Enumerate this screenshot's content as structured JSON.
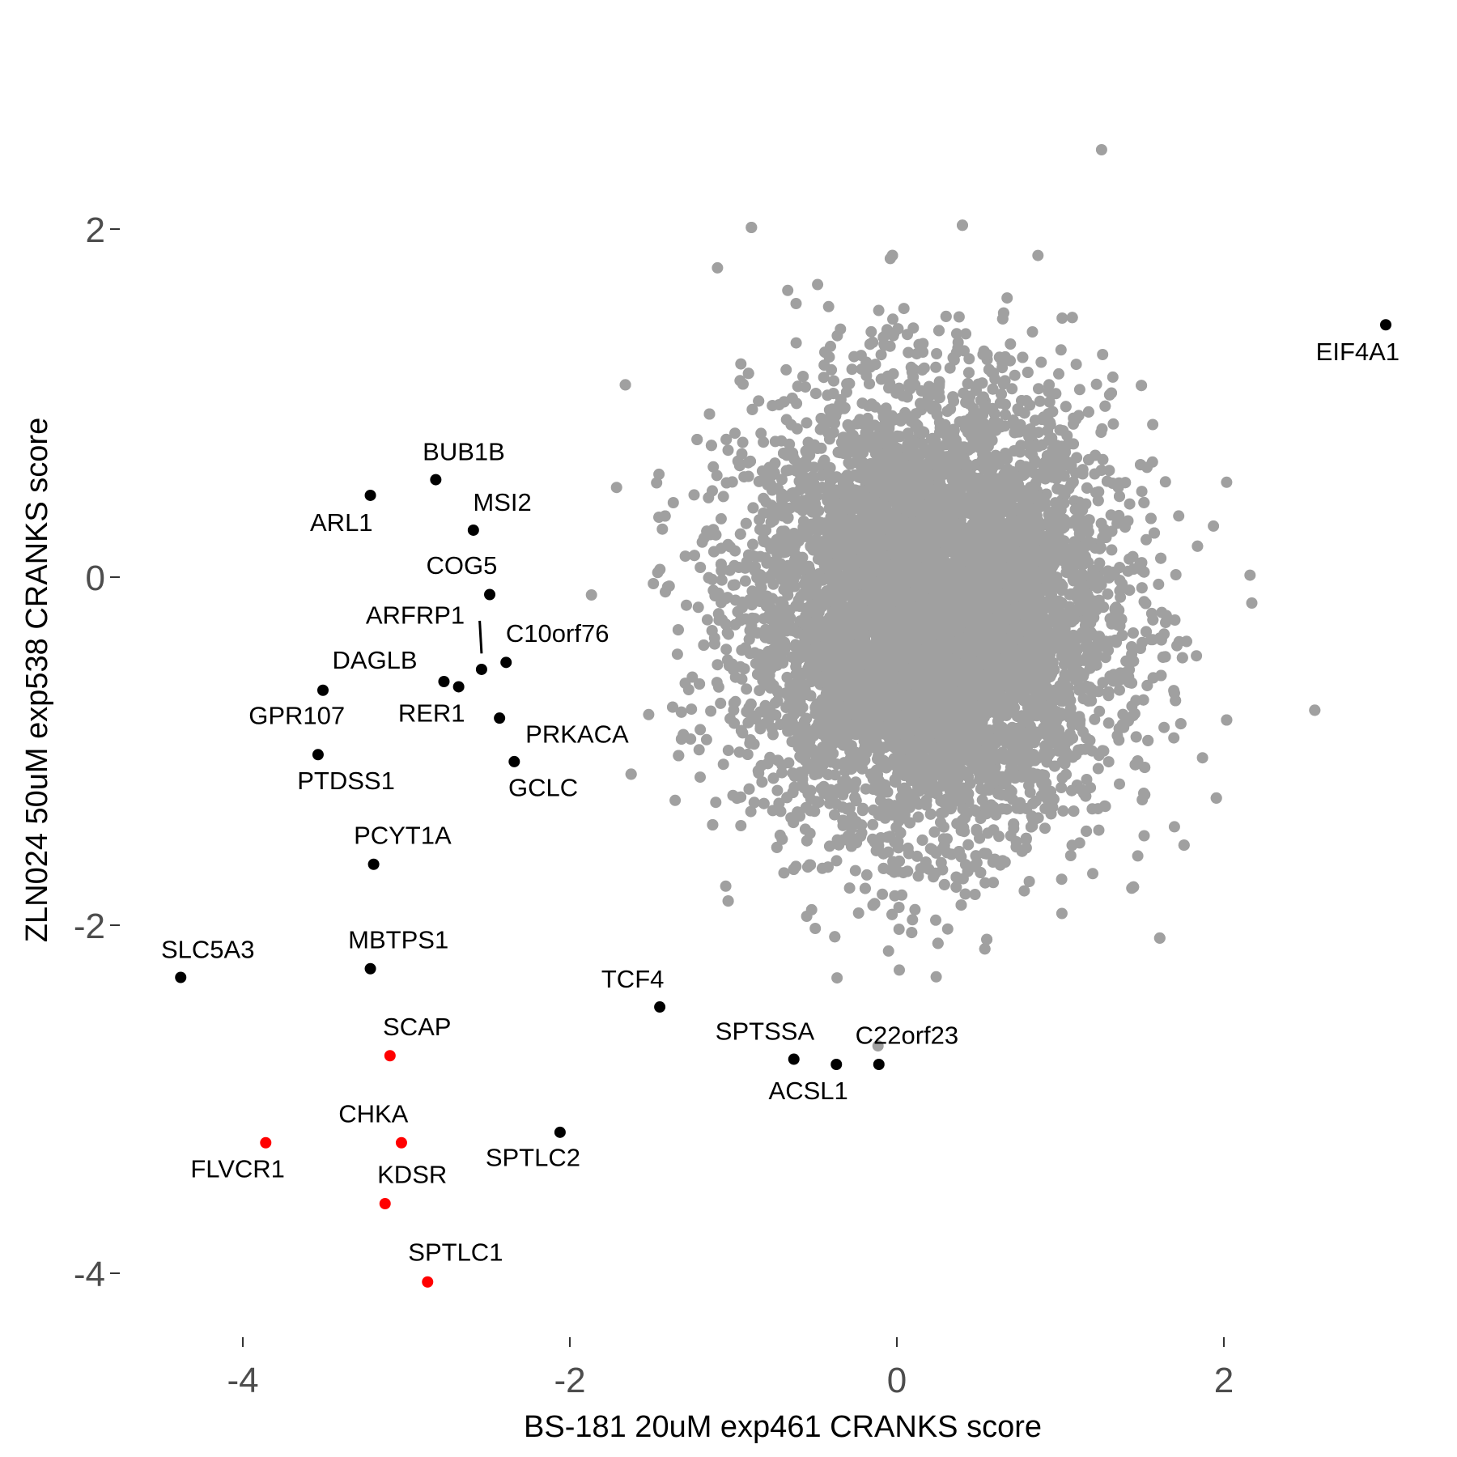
{
  "chart_data": {
    "type": "scatter",
    "title": "",
    "xlabel": "BS-181 20uM exp461 CRANKS score",
    "ylabel": "ZLN024 50uM exp538 CRANKS score",
    "xlim": [
      -4.5,
      3.2
    ],
    "ylim": [
      -4.3,
      2.95
    ],
    "x_ticks": [
      "-4",
      "-2",
      "0",
      "2"
    ],
    "y_ticks": [
      "2",
      "0",
      "-2",
      "-4"
    ],
    "grid": false,
    "legend": "none",
    "colors": {
      "background_points": "#a0a0a0",
      "highlight": "#000000",
      "highlight_red": "#ff0000"
    },
    "background_points": {
      "description_count": 9000,
      "center": [
        0.2,
        -0.2
      ],
      "sd": [
        0.55,
        0.62
      ]
    },
    "labeled_points": [
      {
        "gene": "EIF4A1",
        "x": 2.99,
        "y": 1.45,
        "color": "black"
      },
      {
        "gene": "BUB1B",
        "x": -2.82,
        "y": 0.56,
        "color": "black"
      },
      {
        "gene": "ARL1",
        "x": -3.22,
        "y": 0.47,
        "color": "black"
      },
      {
        "gene": "MSI2",
        "x": -2.59,
        "y": 0.27,
        "color": "black"
      },
      {
        "gene": "COG5",
        "x": -2.49,
        "y": -0.1,
        "color": "black"
      },
      {
        "gene": "ARFRP1",
        "x": -2.54,
        "y": -0.53,
        "color": "black"
      },
      {
        "gene": "C10orf76",
        "x": -2.39,
        "y": -0.49,
        "color": "black"
      },
      {
        "gene": "DAGLB",
        "x": -2.77,
        "y": -0.6,
        "color": "black"
      },
      {
        "gene": "RER1",
        "x": -2.68,
        "y": -0.63,
        "color": "black"
      },
      {
        "gene": "GPR107",
        "x": -3.51,
        "y": -0.65,
        "color": "black"
      },
      {
        "gene": "PTDSS1",
        "x": -3.54,
        "y": -1.02,
        "color": "black"
      },
      {
        "gene": "PRKACA",
        "x": -2.43,
        "y": -0.81,
        "color": "black"
      },
      {
        "gene": "GCLC",
        "x": -2.34,
        "y": -1.06,
        "color": "black"
      },
      {
        "gene": "PCYT1A",
        "x": -3.2,
        "y": -1.65,
        "color": "black"
      },
      {
        "gene": "SLC5A3",
        "x": -4.38,
        "y": -2.3,
        "color": "black"
      },
      {
        "gene": "MBTPS1",
        "x": -3.22,
        "y": -2.25,
        "color": "black"
      },
      {
        "gene": "TCF4",
        "x": -1.45,
        "y": -2.47,
        "color": "black"
      },
      {
        "gene": "SPTSSA",
        "x": -0.63,
        "y": -2.77,
        "color": "black"
      },
      {
        "gene": "ACSL1",
        "x": -0.37,
        "y": -2.8,
        "color": "black"
      },
      {
        "gene": "C22orf23",
        "x": -0.11,
        "y": -2.8,
        "color": "black"
      },
      {
        "gene": "SCAP",
        "x": -3.1,
        "y": -2.75,
        "color": "red"
      },
      {
        "gene": "CHKA",
        "x": -3.03,
        "y": -3.25,
        "color": "red"
      },
      {
        "gene": "FLVCR1",
        "x": -3.86,
        "y": -3.25,
        "color": "red"
      },
      {
        "gene": "KDSR",
        "x": -3.13,
        "y": -3.6,
        "color": "red"
      },
      {
        "gene": "SPTLC1",
        "x": -2.87,
        "y": -4.05,
        "color": "red"
      },
      {
        "gene": "SPTLC2",
        "x": -2.06,
        "y": -3.19,
        "color": "black"
      }
    ]
  }
}
